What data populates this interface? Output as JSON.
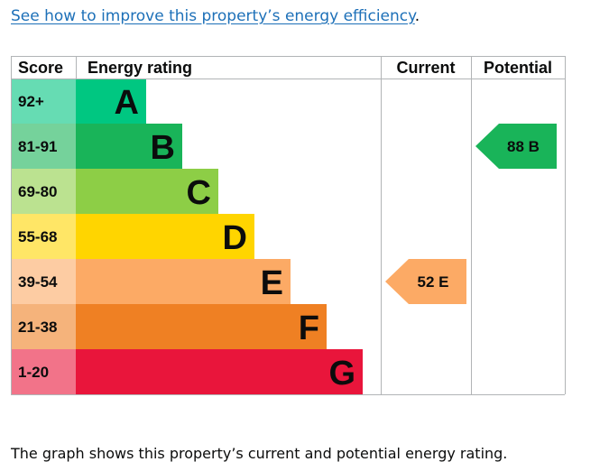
{
  "link": {
    "text": "See how to improve this property’s energy efficiency",
    "trailing": "."
  },
  "chart_data": {
    "type": "table",
    "headers": {
      "score": "Score",
      "rating": "Energy rating",
      "current": "Current",
      "potential": "Potential"
    },
    "bands": [
      {
        "letter": "A",
        "range": "92+",
        "color": "#00c781",
        "score_color": "#66dcb3"
      },
      {
        "letter": "B",
        "range": "81-91",
        "color": "#19b459",
        "score_color": "#75d29b"
      },
      {
        "letter": "C",
        "range": "69-80",
        "color": "#8dce46",
        "score_color": "#bbe290"
      },
      {
        "letter": "D",
        "range": "55-68",
        "color": "#ffd500",
        "score_color": "#ffe666"
      },
      {
        "letter": "E",
        "range": "39-54",
        "color": "#fcaa65",
        "score_color": "#fdcca3"
      },
      {
        "letter": "F",
        "range": "21-38",
        "color": "#ef8023",
        "score_color": "#f5b37b"
      },
      {
        "letter": "G",
        "range": "1-20",
        "color": "#e9153b",
        "score_color": "#f27389"
      }
    ],
    "current": {
      "value": 52,
      "band": "E",
      "label": "52 E",
      "color": "#fcaa65"
    },
    "potential": {
      "value": 88,
      "band": "B",
      "label": "88 B",
      "color": "#19b459"
    }
  },
  "caption": "The graph shows this property’s current and potential energy rating."
}
